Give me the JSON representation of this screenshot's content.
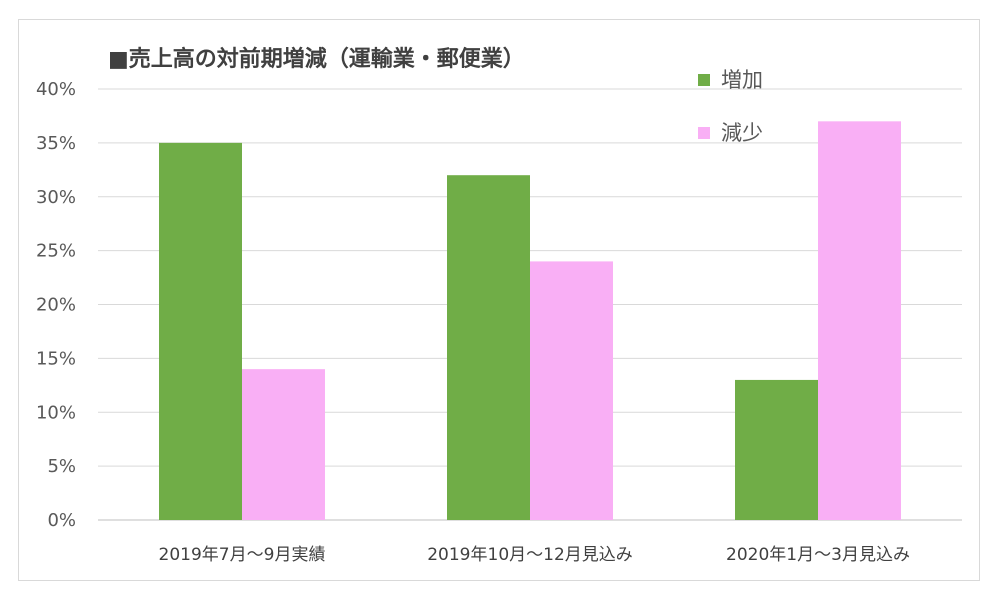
{
  "chart_data": {
    "type": "bar",
    "title": "■売上高の対前期増減（運輸業・郵便業）",
    "categories": [
      "2019年7月～9月実績",
      "2019年10月～12月見込み",
      "2020年1月～3月見込み"
    ],
    "series": [
      {
        "name": "増加",
        "color": "#70ad47",
        "values": [
          35,
          32,
          13
        ]
      },
      {
        "name": "減少",
        "color": "#f9aff5",
        "values": [
          14,
          24,
          37
        ]
      }
    ],
    "yticks": [
      "0%",
      "5%",
      "10%",
      "15%",
      "20%",
      "25%",
      "30%",
      "35%",
      "40%"
    ],
    "ylim": [
      0,
      40
    ],
    "ystep": 5,
    "grid": true,
    "legend_position": "top-right"
  }
}
